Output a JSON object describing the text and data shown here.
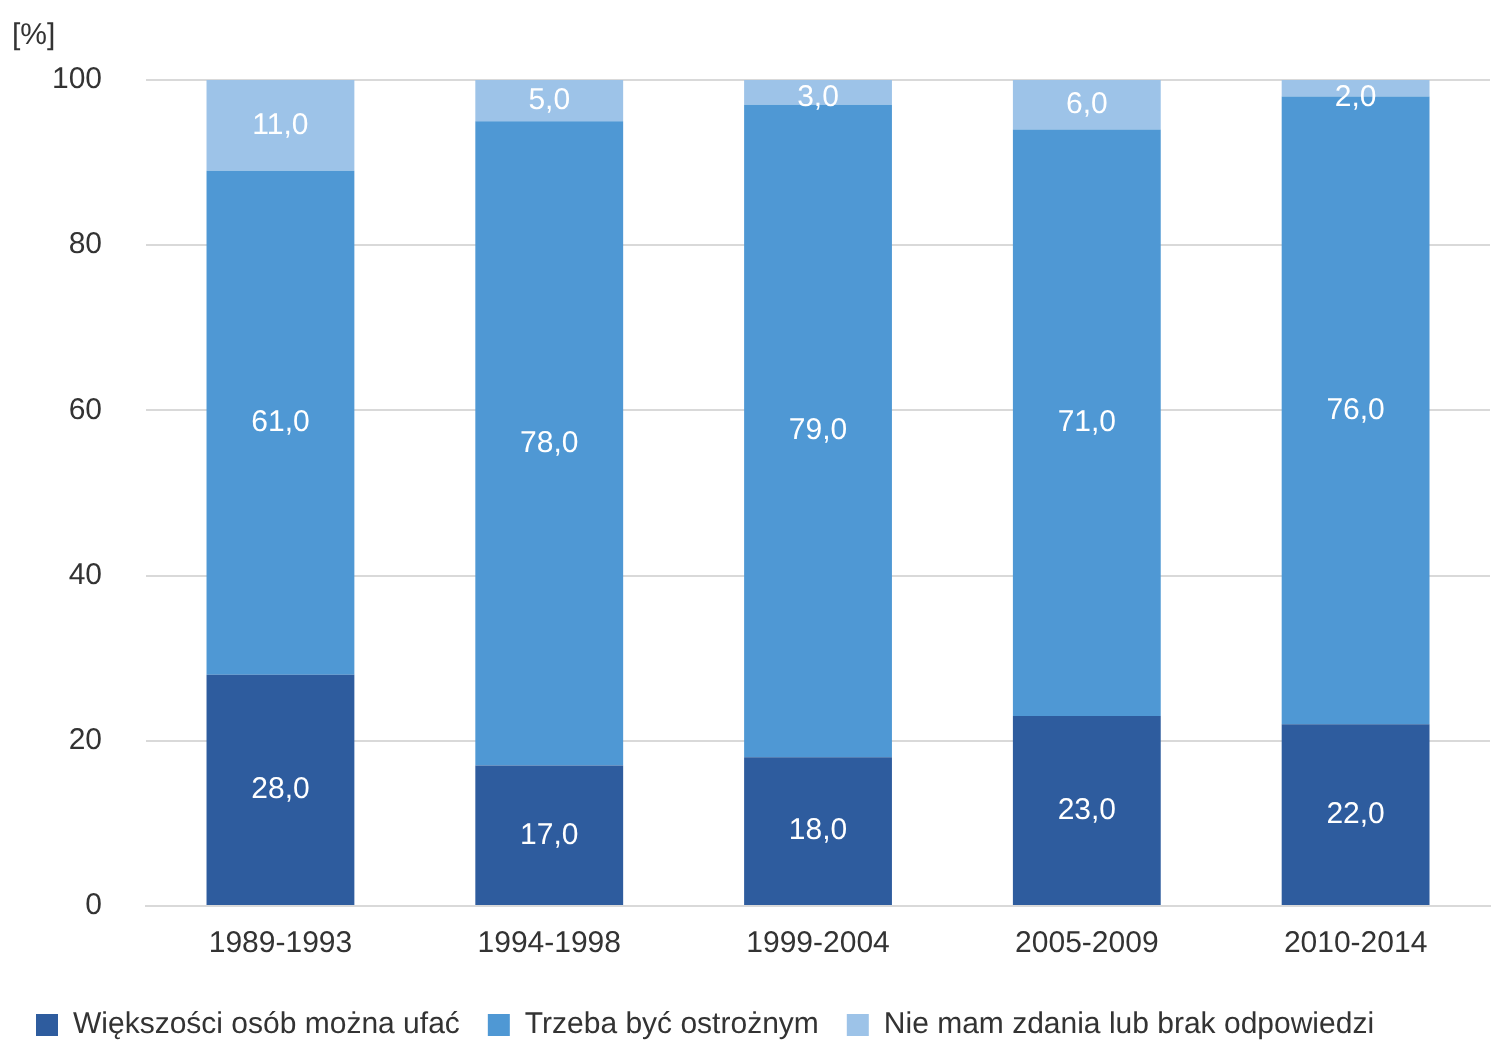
{
  "chart_data": {
    "type": "bar",
    "stacked": true,
    "ylabel": "[%]",
    "categories": [
      "1989-1993",
      "1994-1998",
      "1999-2004",
      "2005-2009",
      "2010-2014"
    ],
    "series": [
      {
        "name": "Większości osób można ufać",
        "color": "#2e5c9e",
        "values": [
          28,
          17,
          18,
          23,
          22
        ],
        "value_labels": [
          "28,0",
          "17,0",
          "18,0",
          "23,0",
          "22,0"
        ]
      },
      {
        "name": "Trzeba być ostrożnym",
        "color": "#4f98d4",
        "values": [
          61,
          78,
          79,
          71,
          76
        ],
        "value_labels": [
          "61,0",
          "78,0",
          "79,0",
          "71,0",
          "76,0"
        ]
      },
      {
        "name": "Nie mam zdania lub brak odpowiedzi",
        "color": "#9dc3e8",
        "values": [
          11,
          5,
          3,
          6,
          2
        ],
        "value_labels": [
          "11,0",
          "5,0",
          "3,0",
          "6,0",
          "2,0"
        ]
      }
    ],
    "ylim": [
      0,
      100
    ],
    "yticks": [
      0,
      20,
      40,
      60,
      80,
      100
    ],
    "grid": "y",
    "legend": "bottom"
  }
}
